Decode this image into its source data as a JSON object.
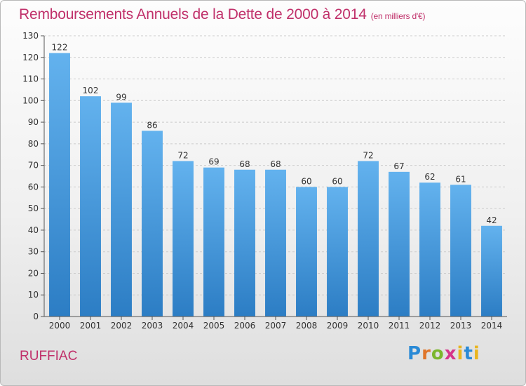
{
  "header": {
    "title": "Remboursements Annuels de la Dette de 2000 à 2014",
    "subtitle": "(en milliers d'€)"
  },
  "footer": {
    "commune": "RUFFIAC",
    "logo": [
      "P",
      "r",
      "o",
      "x",
      "i",
      "t",
      "i"
    ]
  },
  "colors": {
    "bar_top": "#63b2ee",
    "bar_bottom": "#2c7dc4",
    "axis": "#555555",
    "grid": "#cccccc",
    "title": "#c0306a"
  },
  "chart_data": {
    "type": "bar",
    "title": "Remboursements Annuels de la Dette de 2000 à 2014",
    "categories": [
      "2000",
      "2001",
      "2002",
      "2003",
      "2004",
      "2005",
      "2006",
      "2007",
      "2008",
      "2009",
      "2010",
      "2011",
      "2012",
      "2013",
      "2014"
    ],
    "values": [
      122,
      102,
      99,
      86,
      72,
      69,
      68,
      68,
      60,
      60,
      72,
      67,
      62,
      61,
      42
    ],
    "ylim": [
      0,
      130
    ],
    "yticks": [
      0,
      10,
      20,
      30,
      40,
      50,
      60,
      70,
      80,
      90,
      100,
      110,
      120,
      130
    ],
    "grid": true,
    "grid_style": "dashed-horizontal",
    "data_labels": true
  }
}
